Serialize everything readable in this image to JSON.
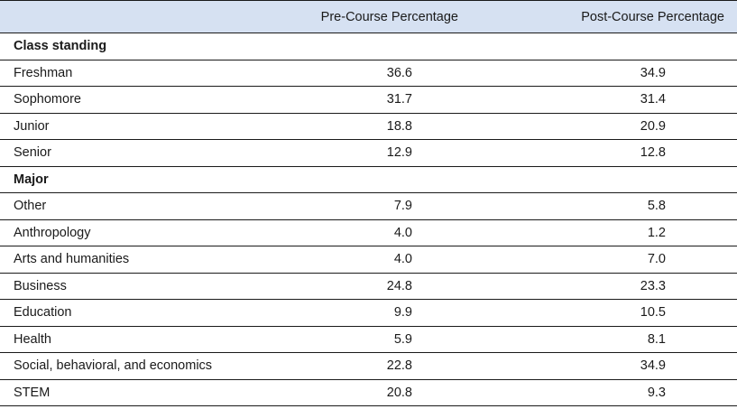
{
  "header": {
    "label": "",
    "pre": "Pre-Course Percentage",
    "post": "Post-Course Percentage"
  },
  "rows": [
    {
      "type": "section",
      "label": "Class standing",
      "pre": "",
      "post": ""
    },
    {
      "type": "data",
      "label": "Freshman",
      "pre": "36.6",
      "post": "34.9"
    },
    {
      "type": "data",
      "label": "Sophomore",
      "pre": "31.7",
      "post": "31.4"
    },
    {
      "type": "data",
      "label": "Junior",
      "pre": "18.8",
      "post": "20.9"
    },
    {
      "type": "data",
      "label": "Senior",
      "pre": "12.9",
      "post": "12.8"
    },
    {
      "type": "section",
      "label": "Major",
      "pre": "",
      "post": ""
    },
    {
      "type": "data",
      "label": "Other",
      "pre": "7.9",
      "post": "5.8"
    },
    {
      "type": "data",
      "label": "Anthropology",
      "pre": "4.0",
      "post": "1.2"
    },
    {
      "type": "data",
      "label": "Arts and humanities",
      "pre": "4.0",
      "post": "7.0"
    },
    {
      "type": "data",
      "label": "Business",
      "pre": "24.8",
      "post": "23.3"
    },
    {
      "type": "data",
      "label": "Education",
      "pre": "9.9",
      "post": "10.5"
    },
    {
      "type": "data",
      "label": "Health",
      "pre": "5.9",
      "post": "8.1"
    },
    {
      "type": "data",
      "label": "Social, behavioral, and economics",
      "pre": "22.8",
      "post": "34.9"
    },
    {
      "type": "data",
      "label": "STEM",
      "pre": "20.8",
      "post": "9.3"
    }
  ]
}
